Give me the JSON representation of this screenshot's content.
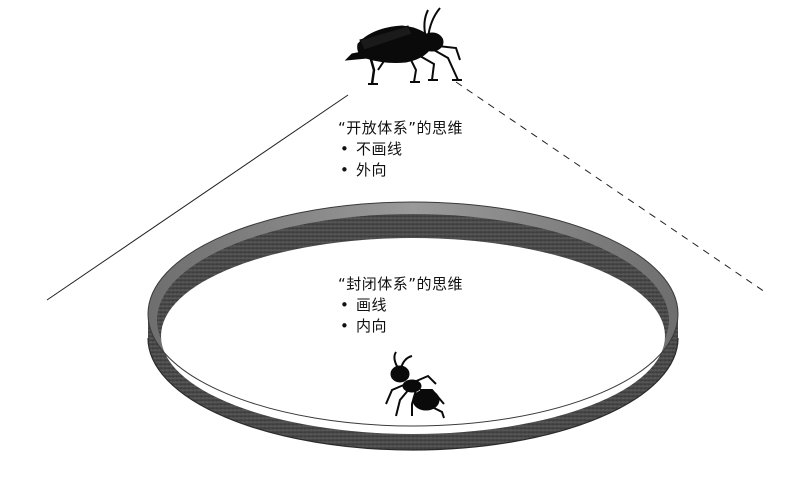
{
  "open_system": {
    "heading": "“开放体系”的思维",
    "bullets": [
      "不画线",
      "外向"
    ]
  },
  "closed_system": {
    "heading": "“封闭体系”的思维",
    "bullets": [
      "画线",
      "内向"
    ]
  },
  "colors": {
    "ring_top": "#8a8a8a",
    "ring_side": "#4a4a4a",
    "silhouette": "#0a0a0a",
    "line": "#222222"
  },
  "icons": {
    "top": "grasshopper-icon",
    "bottom": "ant-icon"
  }
}
